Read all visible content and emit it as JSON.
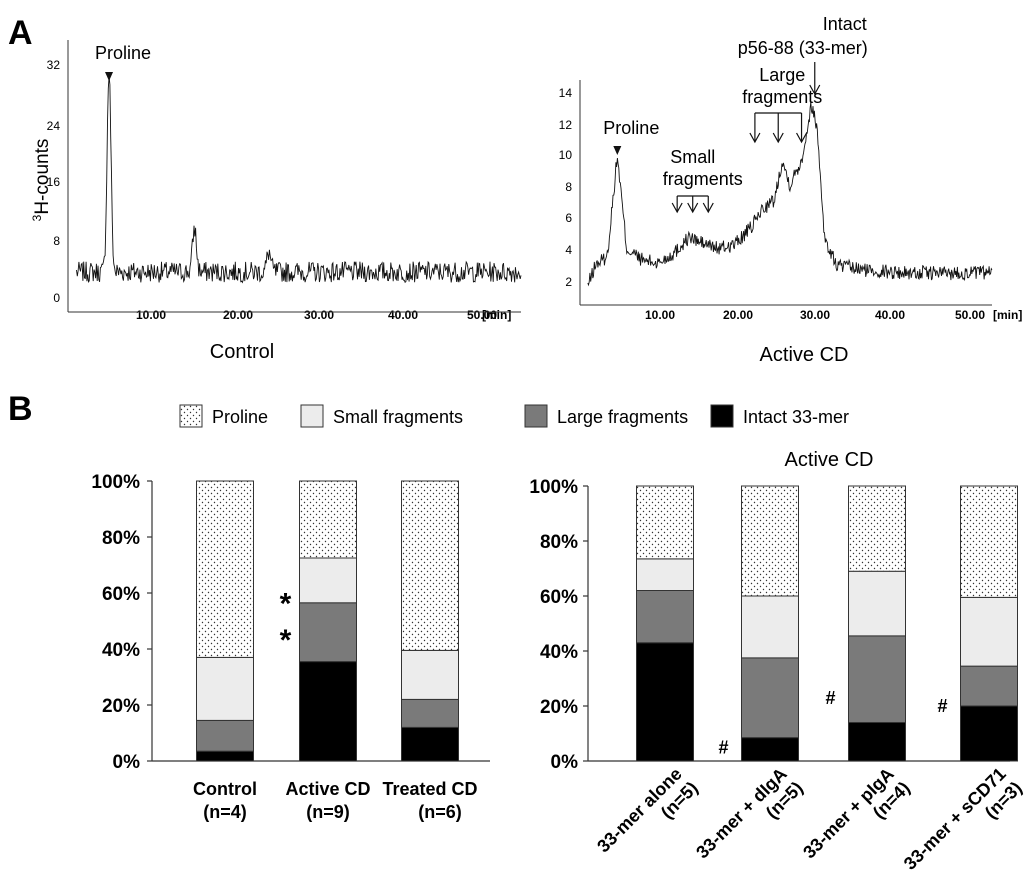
{
  "panels": {
    "a": "A",
    "b": "B"
  },
  "legend": {
    "items": [
      {
        "label": "Proline",
        "fill": "dots"
      },
      {
        "label": "Small fragments",
        "fill": "#ececec"
      },
      {
        "label": "Large fragments",
        "fill": "#7a7a7a"
      },
      {
        "label": "Intact 33-mer",
        "fill": "#000000"
      }
    ]
  },
  "chart_data": [
    {
      "type": "line",
      "ylabel_main": "H-counts",
      "ylabel_sup": "3",
      "caption": "Control",
      "xunit": "[min]",
      "xticks": [
        "10.00",
        "20.00",
        "30.00",
        "40.00",
        "50.00"
      ],
      "yticks": [
        "0",
        "8",
        "16",
        "24",
        "32"
      ],
      "xlim": [
        0,
        53
      ],
      "ylim": [
        0,
        34
      ],
      "annotations": [
        {
          "text": "Proline",
          "x": 4.8
        }
      ],
      "series": [
        {
          "baseline": 5,
          "noise": 1.3,
          "peaks": [
            {
              "x": 4.8,
              "y": 30
            },
            {
              "x": 14.8,
              "y": 10.5
            },
            {
              "x": 23.5,
              "y": 7.5
            }
          ]
        }
      ]
    },
    {
      "type": "line",
      "caption": "Active CD",
      "xunit": "[min]",
      "xticks": [
        "10.00",
        "20.00",
        "30.00",
        "40.00",
        "50.00"
      ],
      "yticks": [
        "2",
        "4",
        "6",
        "8",
        "10",
        "12",
        "14"
      ],
      "xlim": [
        0,
        53
      ],
      "ylim": [
        1,
        15
      ],
      "annotations": [
        {
          "text": "Proline",
          "x": 4.8
        },
        {
          "text": "Small",
          "text2": "fragments",
          "arrows_x": [
            12.5,
            14.5,
            16.5
          ]
        },
        {
          "text": "Large",
          "text2": "fragments",
          "arrows_x": [
            22.5,
            25.5,
            28.5
          ]
        },
        {
          "text": "Intact",
          "text2": "p56-88 (33-mer)",
          "x": 30.2
        }
      ],
      "series": [
        {
          "points": [
            [
              1,
              2.2
            ],
            [
              2,
              3.5
            ],
            [
              3.5,
              4
            ],
            [
              4.8,
              10.3
            ],
            [
              6,
              4.5
            ],
            [
              8,
              3.8
            ],
            [
              10,
              3.6
            ],
            [
              12,
              4.2
            ],
            [
              14,
              5.2
            ],
            [
              16,
              4.8
            ],
            [
              18,
              4.5
            ],
            [
              20,
              4.8
            ],
            [
              22,
              5.8
            ],
            [
              23.5,
              7
            ],
            [
              25,
              7.5
            ],
            [
              26,
              10
            ],
            [
              27,
              8.5
            ],
            [
              28.5,
              10
            ],
            [
              29.8,
              13.5
            ],
            [
              30.5,
              12
            ],
            [
              31.5,
              5
            ],
            [
              33,
              3.5
            ],
            [
              36,
              3.2
            ],
            [
              42,
              3
            ],
            [
              53,
              3
            ]
          ],
          "noise": 0.45
        }
      ]
    },
    {
      "type": "bar",
      "stacked": true,
      "categories": [
        "Control",
        "Active CD",
        "Treated CD"
      ],
      "category_n": [
        "(n=4)",
        "(n=9)",
        "(n=6)"
      ],
      "yticks": [
        "0%",
        "20%",
        "40%",
        "60%",
        "80%",
        "100%"
      ],
      "ylim": [
        0,
        100
      ],
      "series": [
        {
          "name": "Intact 33-mer",
          "values": [
            3.5,
            35.5,
            12
          ]
        },
        {
          "name": "Large fragments",
          "values": [
            11,
            21,
            10
          ]
        },
        {
          "name": "Small fragments",
          "values": [
            22.5,
            16,
            17.5
          ]
        },
        {
          "name": "Proline",
          "values": [
            63,
            27.5,
            60.5
          ]
        }
      ],
      "markers": [
        {
          "text": "*",
          "category": 1,
          "y": 57
        },
        {
          "text": "*",
          "category": 1,
          "y": 44
        }
      ]
    },
    {
      "type": "bar",
      "stacked": true,
      "title": "Active CD",
      "categories": [
        "33-mer alone",
        "33-mer + dIgA",
        "33-mer + pIgA",
        "33-mer + sCD71"
      ],
      "category_n": [
        "(n=5)",
        "(n=5)",
        "(n=4)",
        "(n=3)"
      ],
      "yticks": [
        "0%",
        "20%",
        "40%",
        "60%",
        "80%",
        "100%"
      ],
      "ylim": [
        0,
        100
      ],
      "series": [
        {
          "name": "Intact 33-mer",
          "values": [
            43,
            8.5,
            14,
            20
          ]
        },
        {
          "name": "Large fragments",
          "values": [
            19,
            29,
            31.5,
            14.5
          ]
        },
        {
          "name": "Small fragments",
          "values": [
            11.5,
            22.5,
            23.5,
            25
          ]
        },
        {
          "name": "Proline",
          "values": [
            26.5,
            40,
            31,
            40.5
          ]
        }
      ],
      "markers": [
        {
          "text": "#",
          "category": 1,
          "y": 5
        },
        {
          "text": "#",
          "category": 2,
          "y": 23
        },
        {
          "text": "#",
          "category": 3,
          "y": 20
        }
      ]
    }
  ]
}
